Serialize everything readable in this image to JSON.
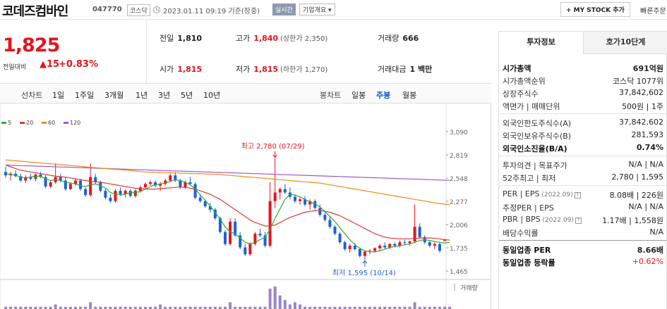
{
  "header": {
    "company": "코데즈컴바인",
    "code": "047770",
    "market": "코스닥",
    "datetime": "2023.01.11 09:19",
    "basis": "기준(장중)",
    "realtime": "실시간",
    "corp_btn": "기업개요 ▾",
    "mystock": "+ MY STOCK 추가",
    "quick": "빠른주문"
  },
  "price": {
    "current": "1,825",
    "change_label": "전일대비",
    "change_amount": "▲15",
    "change_pct": "+0.83%"
  },
  "stats": {
    "prev_close_l": "전일",
    "prev_close": "1,810",
    "high_l": "고가",
    "high": "1,840",
    "upper_limit": "(상한가 2,350)",
    "volume_l": "거래량",
    "volume": "666",
    "open_l": "시가",
    "open": "1,815",
    "low_l": "저가",
    "low": "1,815",
    "lower_limit": "(하한가 1,270)",
    "amount_l": "거래대금",
    "amount": "1 백만"
  },
  "periods": {
    "line_label": "선차트",
    "line": [
      "1일",
      "1주일",
      "3개월",
      "1년",
      "3년",
      "5년",
      "10년"
    ],
    "candle_label": "봉차트",
    "candle": [
      "일봉",
      "주봉",
      "월봉"
    ],
    "selected": "주봉"
  },
  "legend": [
    {
      "name": "5",
      "color": "#2faa3a"
    },
    {
      "name": "20",
      "color": "#e23a3a"
    },
    {
      "name": "60",
      "color": "#f08a1d"
    },
    {
      "name": "120",
      "color": "#9a5cc9"
    }
  ],
  "chart_data": {
    "type": "candlestick",
    "y_ticks": [
      3090,
      2819,
      2548,
      2277,
      2006,
      1735,
      1465
    ],
    "y_tick_labels": [
      "3,090",
      "2,819",
      "2,548",
      "2,277",
      "2,006",
      "1,735",
      "1,465"
    ],
    "ylim": [
      1465,
      3090
    ],
    "high_annotation": "최고 2,780 (07/29)",
    "low_annotation": "최저 1,595 (10/14)",
    "high_value": 2780,
    "low_value": 1595,
    "volume_label": "거래량",
    "up_color": "#e4141e",
    "down_color": "#1e62d0",
    "candles": [
      [
        2620,
        2680,
        2550,
        2580
      ],
      [
        2580,
        2620,
        2520,
        2600
      ],
      [
        2600,
        2640,
        2560,
        2570
      ],
      [
        2570,
        2600,
        2500,
        2520
      ],
      [
        2520,
        2580,
        2490,
        2560
      ],
      [
        2560,
        2600,
        2520,
        2540
      ],
      [
        2540,
        2600,
        2510,
        2590
      ],
      [
        2590,
        2620,
        2550,
        2560
      ],
      [
        2560,
        2580,
        2430,
        2450
      ],
      [
        2450,
        2520,
        2430,
        2500
      ],
      [
        2500,
        2720,
        2480,
        2560
      ],
      [
        2560,
        2600,
        2500,
        2520
      ],
      [
        2520,
        2560,
        2400,
        2420
      ],
      [
        2420,
        2500,
        2410,
        2480
      ],
      [
        2480,
        2540,
        2460,
        2520
      ],
      [
        2520,
        2540,
        2400,
        2420
      ],
      [
        2420,
        2440,
        2330,
        2350
      ],
      [
        2350,
        2720,
        2330,
        2560
      ],
      [
        2560,
        2600,
        2480,
        2500
      ],
      [
        2500,
        2520,
        2380,
        2400
      ],
      [
        2400,
        2420,
        2300,
        2320
      ],
      [
        2320,
        2360,
        2260,
        2280
      ],
      [
        2280,
        2420,
        2260,
        2400
      ],
      [
        2400,
        2440,
        2340,
        2360
      ],
      [
        2360,
        2420,
        2320,
        2400
      ],
      [
        2400,
        2420,
        2320,
        2340
      ],
      [
        2340,
        2420,
        2320,
        2400
      ],
      [
        2400,
        2460,
        2380,
        2440
      ],
      [
        2440,
        2500,
        2420,
        2480
      ],
      [
        2480,
        2520,
        2460,
        2500
      ],
      [
        2500,
        2520,
        2440,
        2460
      ],
      [
        2460,
        2500,
        2400,
        2480
      ],
      [
        2480,
        2540,
        2460,
        2520
      ],
      [
        2520,
        2600,
        2500,
        2580
      ],
      [
        2580,
        2620,
        2500,
        2520
      ],
      [
        2520,
        2540,
        2420,
        2440
      ],
      [
        2440,
        2520,
        2420,
        2500
      ],
      [
        2500,
        2560,
        2470,
        2480
      ],
      [
        2480,
        2500,
        2300,
        2320
      ],
      [
        2320,
        2360,
        2260,
        2280
      ],
      [
        2280,
        2300,
        2200,
        2220
      ],
      [
        2220,
        2260,
        2150,
        2180
      ],
      [
        2180,
        2200,
        2060,
        2080
      ],
      [
        2080,
        2100,
        1900,
        1920
      ],
      [
        1920,
        1940,
        1760,
        1780
      ],
      [
        1780,
        2080,
        1760,
        2040
      ],
      [
        2040,
        2080,
        1860,
        1880
      ],
      [
        1880,
        1920,
        1720,
        1740
      ],
      [
        1740,
        1780,
        1640,
        1660
      ],
      [
        1660,
        1800,
        1640,
        1780
      ],
      [
        1780,
        1920,
        1760,
        1900
      ],
      [
        1900,
        1960,
        1860,
        1880
      ],
      [
        1880,
        1920,
        1740,
        1760
      ],
      [
        1760,
        2500,
        1740,
        2280
      ],
      [
        2280,
        2780,
        2200,
        2380
      ],
      [
        2380,
        2440,
        2300,
        2420
      ],
      [
        2420,
        2480,
        2360,
        2380
      ],
      [
        2380,
        2440,
        2300,
        2330
      ],
      [
        2330,
        2360,
        2260,
        2280
      ],
      [
        2280,
        2320,
        2240,
        2300
      ],
      [
        2300,
        2340,
        2220,
        2240
      ],
      [
        2240,
        2300,
        2180,
        2280
      ],
      [
        2280,
        2300,
        2180,
        2200
      ],
      [
        2200,
        2240,
        2100,
        2120
      ],
      [
        2120,
        2160,
        2040,
        2060
      ],
      [
        2060,
        2100,
        1960,
        1980
      ],
      [
        1980,
        2000,
        1880,
        1900
      ],
      [
        1900,
        1920,
        1780,
        1800
      ],
      [
        1800,
        1820,
        1700,
        1720
      ],
      [
        1720,
        1780,
        1680,
        1760
      ],
      [
        1760,
        1790,
        1700,
        1720
      ],
      [
        1720,
        1740,
        1620,
        1640
      ],
      [
        1640,
        1700,
        1595,
        1690
      ],
      [
        1690,
        1720,
        1660,
        1700
      ],
      [
        1700,
        1740,
        1680,
        1730
      ],
      [
        1730,
        1780,
        1700,
        1760
      ],
      [
        1760,
        1800,
        1720,
        1740
      ],
      [
        1740,
        1790,
        1720,
        1780
      ],
      [
        1780,
        1800,
        1740,
        1760
      ],
      [
        1760,
        1820,
        1740,
        1800
      ],
      [
        1800,
        1830,
        1770,
        1790
      ],
      [
        1790,
        1820,
        1760,
        1810
      ],
      [
        1810,
        2240,
        1790,
        1980
      ],
      [
        1980,
        2020,
        1840,
        1860
      ],
      [
        1860,
        1880,
        1780,
        1800
      ],
      [
        1800,
        1820,
        1740,
        1760
      ],
      [
        1760,
        1800,
        1720,
        1780
      ],
      [
        1780,
        1800,
        1680,
        1700
      ],
      [
        1815,
        1840,
        1815,
        1825
      ]
    ],
    "ma5": [
      2600,
      2590,
      2580,
      2560,
      2550,
      2560,
      2570,
      2570,
      2540,
      2520,
      2530,
      2520,
      2500,
      2490,
      2480,
      2460,
      2450,
      2470,
      2480,
      2460,
      2430,
      2380,
      2360,
      2350,
      2360,
      2380,
      2380,
      2390,
      2420,
      2450,
      2470,
      2480,
      2490,
      2510,
      2530,
      2520,
      2500,
      2470,
      2420,
      2350,
      2290,
      2220,
      2150,
      2070,
      1980,
      1920,
      1900,
      1850,
      1800,
      1780,
      1800,
      1830,
      1860,
      1950,
      2080,
      2190,
      2300,
      2360,
      2350,
      2330,
      2300,
      2270,
      2250,
      2210,
      2160,
      2100,
      2040,
      1970,
      1900,
      1830,
      1770,
      1730,
      1700,
      1690,
      1690,
      1700,
      1720,
      1740,
      1750,
      1760,
      1770,
      1780,
      1800,
      1820,
      1830,
      1820,
      1810,
      1800,
      1790,
      1800
    ],
    "ma20": [
      2700,
      2680,
      2660,
      2640,
      2630,
      2620,
      2610,
      2600,
      2590,
      2580,
      2570,
      2565,
      2560,
      2550,
      2540,
      2530,
      2520,
      2510,
      2505,
      2500,
      2490,
      2480,
      2470,
      2460,
      2450,
      2440,
      2430,
      2425,
      2420,
      2420,
      2420,
      2425,
      2430,
      2435,
      2440,
      2445,
      2440,
      2430,
      2420,
      2400,
      2380,
      2360,
      2330,
      2300,
      2260,
      2220,
      2180,
      2140,
      2100,
      2060,
      2030,
      2010,
      1990,
      1990,
      2000,
      2030,
      2060,
      2090,
      2110,
      2130,
      2150,
      2160,
      2170,
      2170,
      2160,
      2150,
      2130,
      2110,
      2080,
      2050,
      2020,
      1990,
      1960,
      1930,
      1900,
      1880,
      1860,
      1850,
      1845,
      1840,
      1840,
      1840,
      1845,
      1850,
      1850,
      1850,
      1845,
      1840,
      1830,
      1825
    ],
    "ma60": [
      2760,
      2755,
      2750,
      2745,
      2740,
      2735,
      2730,
      2725,
      2720,
      2715,
      2710,
      2705,
      2700,
      2695,
      2690,
      2685,
      2680,
      2675,
      2670,
      2665,
      2660,
      2655,
      2650,
      2645,
      2640,
      2635,
      2630,
      2625,
      2620,
      2618,
      2616,
      2614,
      2612,
      2610,
      2608,
      2606,
      2604,
      2602,
      2600,
      2598,
      2596,
      2594,
      2592,
      2590,
      2585,
      2580,
      2575,
      2570,
      2565,
      2560,
      2555,
      2550,
      2545,
      2540,
      2535,
      2530,
      2525,
      2520,
      2515,
      2510,
      2505,
      2500,
      2495,
      2490,
      2480,
      2470,
      2460,
      2450,
      2440,
      2430,
      2420,
      2410,
      2400,
      2390,
      2380,
      2370,
      2360,
      2350,
      2340,
      2330,
      2320,
      2310,
      2300,
      2290,
      2280,
      2270,
      2260,
      2250,
      2245,
      2240
    ],
    "ma120": [
      2700,
      2698,
      2696,
      2694,
      2692,
      2690,
      2688,
      2686,
      2684,
      2682,
      2680,
      2678,
      2676,
      2674,
      2672,
      2670,
      2668,
      2666,
      2664,
      2662,
      2660,
      2658,
      2656,
      2654,
      2652,
      2650,
      2648,
      2646,
      2644,
      2642,
      2640,
      2638,
      2636,
      2634,
      2632,
      2630,
      2628,
      2626,
      2624,
      2622,
      2620,
      2618,
      2616,
      2614,
      2612,
      2610,
      2608,
      2606,
      2604,
      2602,
      2600,
      2598,
      2596,
      2594,
      2592,
      2590,
      2588,
      2586,
      2584,
      2582,
      2580,
      2578,
      2576,
      2574,
      2572,
      2570,
      2568,
      2566,
      2564,
      2562,
      2560,
      2558,
      2556,
      2554,
      2552,
      2550,
      2548,
      2546,
      2544,
      2542,
      2540,
      2538,
      2536,
      2534,
      2532,
      2530,
      2528,
      2526,
      2524,
      2522
    ],
    "volume": [
      1,
      1,
      1,
      1,
      1,
      1,
      1,
      1,
      1,
      1,
      2,
      1,
      1,
      1,
      1,
      1,
      1,
      3,
      1,
      1,
      1,
      1,
      1,
      1,
      1,
      1,
      1,
      1,
      1,
      1,
      1,
      2,
      1,
      1,
      1,
      1,
      1,
      1,
      1,
      1,
      1,
      1,
      1,
      1,
      1,
      3,
      1,
      1,
      1,
      1,
      1,
      1,
      1,
      9,
      10,
      6,
      4,
      2,
      3,
      2,
      1,
      1,
      1,
      1,
      1,
      1,
      1,
      1,
      1,
      1,
      1,
      1,
      1,
      1,
      1,
      1,
      1,
      1,
      1,
      1,
      1,
      1,
      3,
      1,
      1,
      1,
      1,
      1,
      1,
      1
    ]
  },
  "side": {
    "tab1": "투자정보",
    "tab2": "호가10단계",
    "rows1": [
      {
        "k": "시가총액",
        "v": "691억원",
        "kb": true,
        "vb": true
      },
      {
        "k": "시가총액순위",
        "v": "코스닥 1077위"
      },
      {
        "k": "상장주식수",
        "v": "37,842,602"
      },
      {
        "k": "액면가 | 매매단위",
        "v": "500원 | 1주"
      }
    ],
    "rows2": [
      {
        "k": "외국인한도주식수(A)",
        "v": "37,842,602"
      },
      {
        "k": "외국인보유주식수(B)",
        "v": "281,593"
      },
      {
        "k": "외국인소진율(B/A)",
        "v": "0.74%",
        "kb": true,
        "vb": true
      }
    ],
    "rows3": [
      {
        "k": "투자의견 | 목표주가",
        "v": "N/A | N/A"
      },
      {
        "k": "52주최고 | 최저",
        "v": "2,780 | 1,595"
      }
    ],
    "per_k": "PER | EPS",
    "per_date": "(2022.09)",
    "per_v": "8.08배 | 226원",
    "eper_k": "추정PER | EPS",
    "eper_v": "N/A | N/A",
    "pbr_k": "PBR | BPS",
    "pbr_date": "(2022.09)",
    "pbr_v": "1.17배 | 1,558원",
    "div_k": "배당수익률",
    "div_v": "N/A",
    "ind_per_k": "동일업종 PER",
    "ind_per_v": "8.66배",
    "ind_chg_k": "동일업종 등락률",
    "ind_chg_v": "+0.62%"
  }
}
